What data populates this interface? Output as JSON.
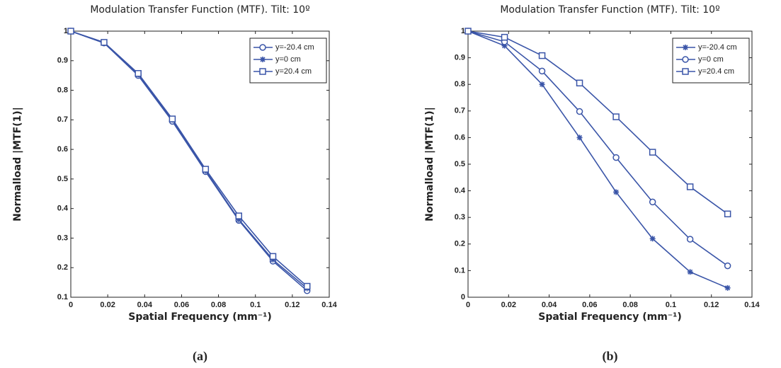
{
  "chart_data": [
    {
      "type": "line",
      "title": "Modulation Transfer Function (MTF). Tilt: 10º",
      "x_label": "Spatial Frequency (mm⁻¹)",
      "y_label": "Normalload |MTF(1)|",
      "panel_label": "(a)",
      "x": [
        0,
        0.018,
        0.0365,
        0.055,
        0.073,
        0.091,
        0.1095,
        0.128
      ],
      "series": [
        {
          "name": "y=-20.4 cm",
          "color": "#3a55a8",
          "marker": "circle",
          "values": [
            1,
            0.96,
            0.85,
            0.695,
            0.525,
            0.36,
            0.222,
            0.122
          ]
        },
        {
          "name": "y=0 cm",
          "color": "#3a55a8",
          "marker": "star",
          "values": [
            1,
            0.96,
            0.853,
            0.7,
            0.528,
            0.363,
            0.227,
            0.13
          ]
        },
        {
          "name": "y=20.4 cm",
          "color": "#3a55a8",
          "marker": "square",
          "values": [
            1,
            0.962,
            0.857,
            0.703,
            0.533,
            0.375,
            0.238,
            0.137
          ]
        }
      ],
      "xlim": [
        0,
        0.14
      ],
      "xticks": [
        0,
        0.02,
        0.04,
        0.06,
        0.08,
        0.1,
        0.12,
        0.14
      ],
      "ylim": [
        0.1,
        1
      ],
      "yticks": [
        0.1,
        0.2,
        0.3,
        0.4,
        0.5,
        0.6,
        0.7,
        0.8,
        0.9,
        1
      ],
      "legend": "upper right"
    },
    {
      "type": "line",
      "title": "Modulation Transfer Function (MTF). Tilt: 10º",
      "x_label": "Spatial Frequency (mm⁻¹)",
      "y_label": "Normalload |MTF(1)|",
      "panel_label": "(b)",
      "x": [
        0,
        0.018,
        0.0365,
        0.055,
        0.073,
        0.091,
        0.1095,
        0.128
      ],
      "series": [
        {
          "name": "y=-20.4 cm",
          "color": "#3a55a8",
          "marker": "star",
          "values": [
            1,
            0.945,
            0.8,
            0.6,
            0.395,
            0.22,
            0.095,
            0.035
          ]
        },
        {
          "name": "y=0 cm",
          "color": "#3a55a8",
          "marker": "circle",
          "values": [
            1,
            0.96,
            0.85,
            0.698,
            0.525,
            0.358,
            0.218,
            0.118
          ]
        },
        {
          "name": "y=20.4 cm",
          "color": "#3a55a8",
          "marker": "square",
          "values": [
            1,
            0.977,
            0.908,
            0.805,
            0.678,
            0.545,
            0.415,
            0.313
          ]
        }
      ],
      "xlim": [
        0,
        0.14
      ],
      "xticks": [
        0,
        0.02,
        0.04,
        0.06,
        0.08,
        0.1,
        0.12,
        0.14
      ],
      "ylim": [
        0,
        1
      ],
      "yticks": [
        0,
        0.1,
        0.2,
        0.3,
        0.4,
        0.5,
        0.6,
        0.7,
        0.8,
        0.9,
        1
      ],
      "legend": "upper right"
    }
  ]
}
